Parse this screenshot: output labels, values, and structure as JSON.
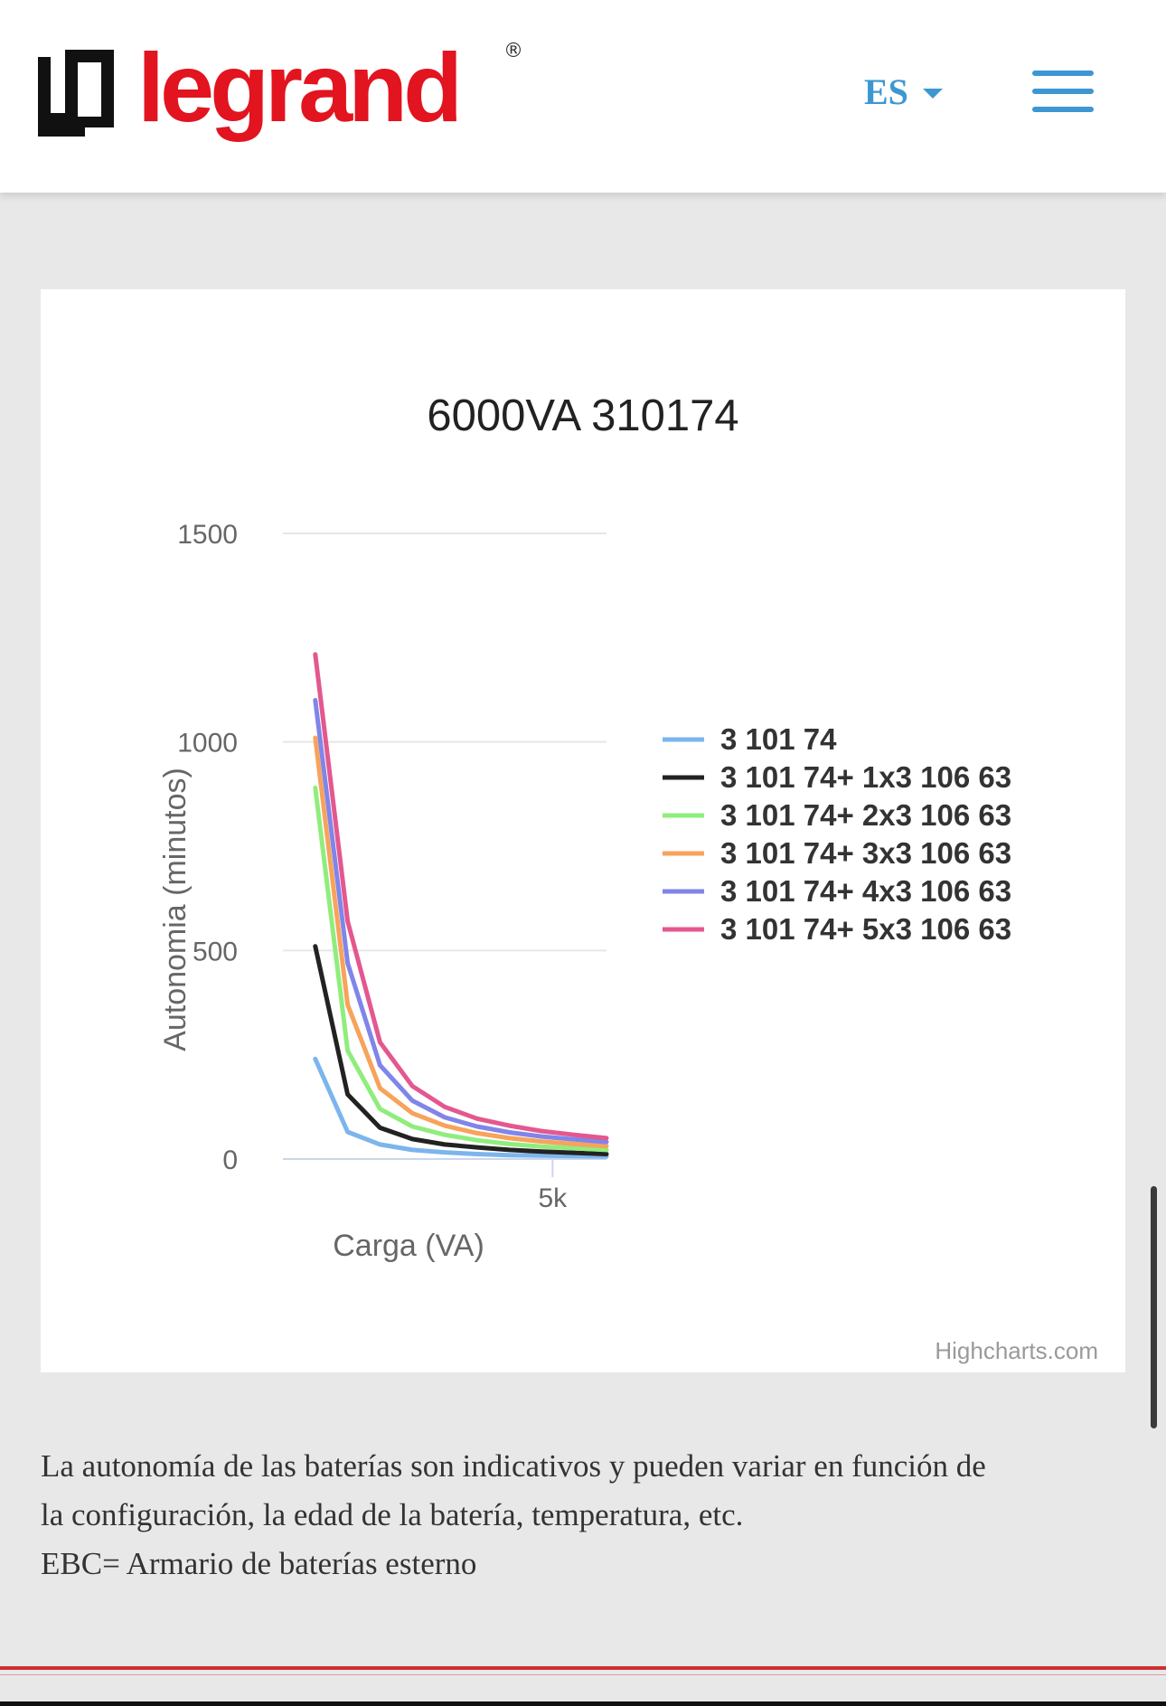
{
  "header": {
    "brand": "legrand",
    "brand_mark": "®",
    "language": "ES",
    "icons": {
      "lang_caret": "caret-down-icon",
      "menu": "hamburger-menu-icon"
    }
  },
  "colors": {
    "brand_red": "#e2141f",
    "accent_blue": "#3d97d3"
  },
  "chart_data": {
    "type": "line",
    "title": "6000VA 310174",
    "xlabel": "Carga (VA)",
    "ylabel": "Autonomia (minutos)",
    "ylim": [
      0,
      1500
    ],
    "xlim": [
      0,
      6000
    ],
    "yticks": [
      "0",
      "500",
      "1000",
      "1500"
    ],
    "xticks": [
      {
        "value": 5000,
        "label": "5k"
      }
    ],
    "grid": true,
    "legend_placement": "right",
    "x": [
      600,
      1200,
      1800,
      2400,
      3000,
      3600,
      4200,
      4800,
      5400,
      6000
    ],
    "series": [
      {
        "name": "3 101 74",
        "color": "#7cb5ec",
        "values": [
          240,
          65,
          35,
          22,
          16,
          12,
          9,
          8,
          7,
          6
        ]
      },
      {
        "name": "3 101 74+ 1x3 106 63",
        "color": "#222222",
        "values": [
          510,
          155,
          75,
          48,
          35,
          28,
          22,
          18,
          15,
          12
        ]
      },
      {
        "name": "3 101 74+ 2x3 106 63",
        "color": "#90ed7d",
        "values": [
          890,
          260,
          120,
          78,
          58,
          45,
          36,
          30,
          26,
          22
        ]
      },
      {
        "name": "3 101 74+ 3x3 106 63",
        "color": "#f7a35c",
        "values": [
          1010,
          370,
          170,
          110,
          80,
          62,
          50,
          42,
          36,
          31
        ]
      },
      {
        "name": "3 101 74+ 4x3 106 63",
        "color": "#8085e9",
        "values": [
          1100,
          470,
          225,
          140,
          100,
          78,
          64,
          54,
          47,
          41
        ]
      },
      {
        "name": "3 101 74+ 5x3 106 63",
        "color": "#e4578f",
        "values": [
          1210,
          570,
          280,
          175,
          125,
          97,
          80,
          67,
          58,
          50
        ]
      }
    ],
    "credits": "Highcharts.com"
  },
  "note": {
    "line1": "La autonomía de las baterías son indicativos y pueden variar en función de",
    "line2": "la configuración, la edad de la batería, temperatura, etc.",
    "line3": "EBC= Armario de baterías esterno"
  }
}
